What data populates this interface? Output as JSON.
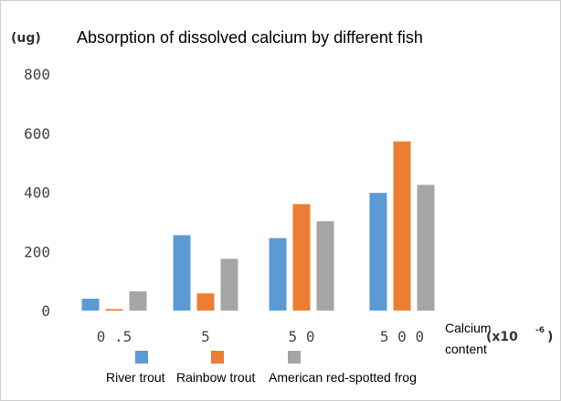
{
  "chart_data": {
    "type": "bar",
    "title": "Absorption of dissolved calcium by different fish",
    "ylabel": "(ug)",
    "xlabel": "Calcium content",
    "xunit": "(x10",
    "xunit_exp": "-6",
    "xunit_close": ")",
    "categories": [
      "0.5",
      "5",
      "50",
      "500"
    ],
    "ylim": [
      0,
      800
    ],
    "yticks": [
      0,
      200,
      400,
      600,
      800
    ],
    "ytick_labels": [
      "0",
      "200",
      "400",
      "600",
      "800"
    ],
    "grid": false,
    "legend_position": "bottom",
    "series": [
      {
        "name": "River trout",
        "color": "#5b9bd5",
        "values": [
          40,
          255,
          245,
          398
        ]
      },
      {
        "name": "Rainbow trout",
        "color": "#ed7d31",
        "values": [
          5,
          58,
          360,
          572
        ]
      },
      {
        "name": "American red-spotted frog",
        "color": "#a5a5a5",
        "values": [
          65,
          175,
          302,
          425
        ]
      }
    ]
  }
}
